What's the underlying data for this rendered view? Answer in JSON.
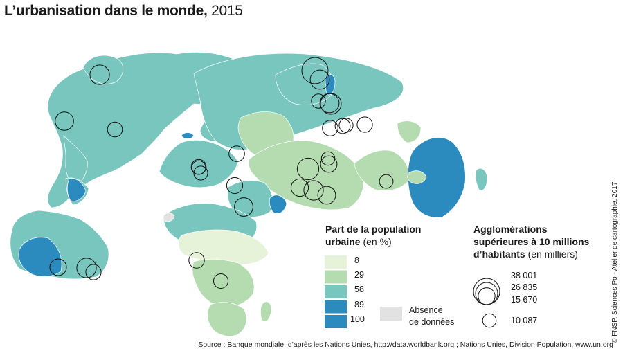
{
  "title": {
    "main": "L’urbanisation dans le monde,",
    "year": "2015"
  },
  "colors": {
    "ocean": "#ffffff",
    "c8": "#e6f3d9",
    "c29": "#b4dcb0",
    "c58": "#78c6be",
    "c89": "#2b8bbf",
    "nodata": "#e2e2e2",
    "border": "#ffffff",
    "circle": "#111111"
  },
  "legend_urban": {
    "title_line1": "Part de la population",
    "title_line2": "urbaine",
    "unit": "(en %)",
    "classes": [
      "8",
      "29",
      "58",
      "89",
      "100"
    ],
    "nodata_line1": "Absence",
    "nodata_line2": "de données"
  },
  "legend_cities": {
    "title_line1": "Agglomérations",
    "title_line2": "supérieures à 10 millions",
    "title_line3": "d’habitants",
    "unit": "(en milliers)",
    "values": [
      "38 001",
      "26 835",
      "15 670",
      "10 087"
    ]
  },
  "copyright": "© FNSP. Sciences Po - Atelier de cartographie, 2017",
  "source": "Source : Banque mondiale, d'après les Nations Unies, http://data.worldbank.org ; Nations Unies, Division Population, www.un.org",
  "map_data": {
    "class_colors": [
      "c8",
      "c29",
      "c58",
      "c89",
      "nodata"
    ],
    "city_circles": 30,
    "city_size_range_thousands": [
      10087,
      38001
    ]
  }
}
